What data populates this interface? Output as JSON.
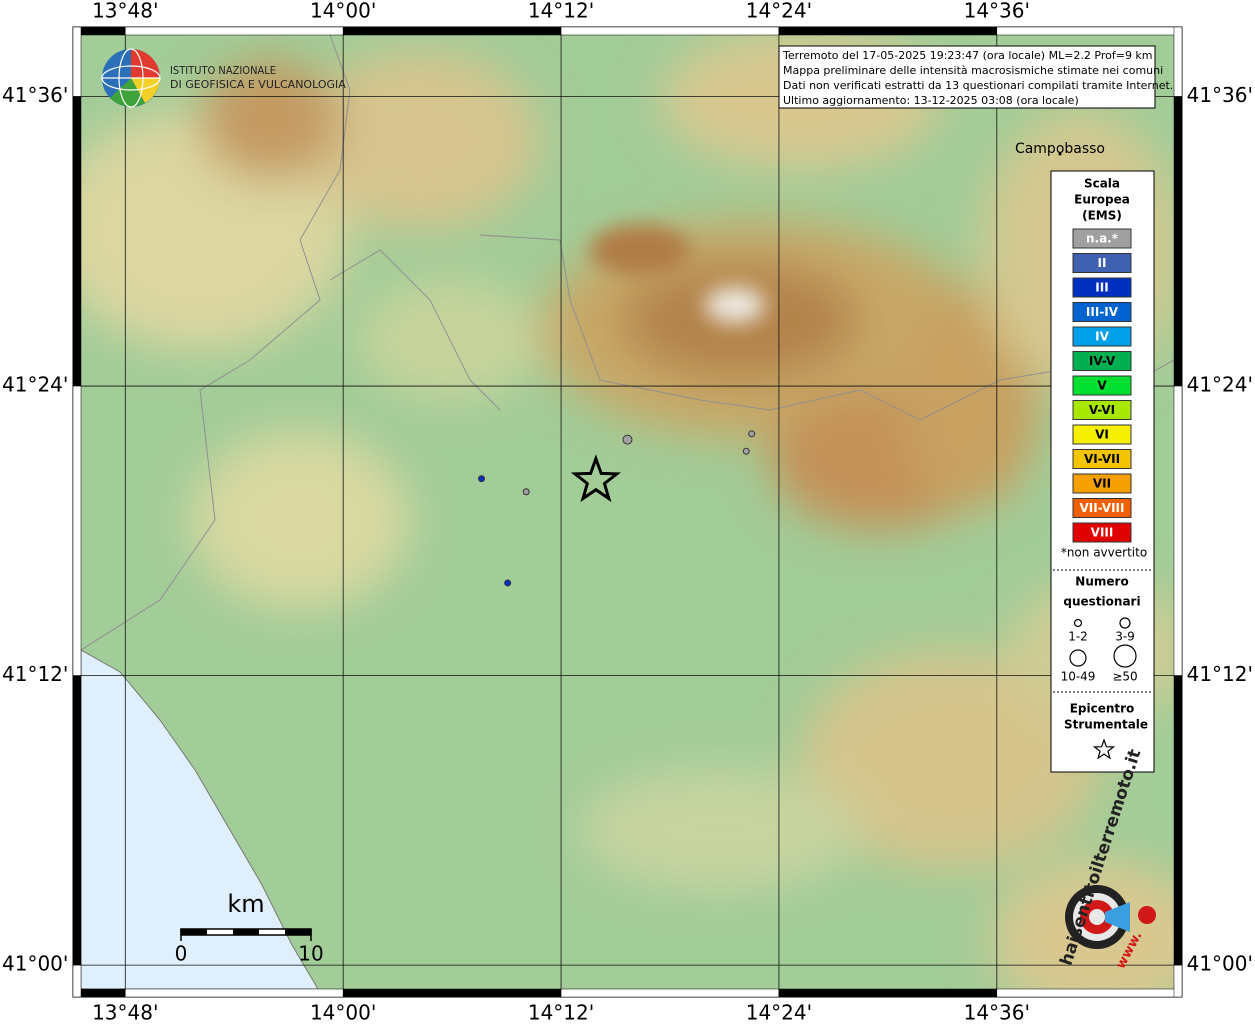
{
  "map": {
    "info": [
      "Terremoto del 17-05-2025 19:23:47 (ora locale) ML=2.2 Prof=9 km",
      "Mappa preliminare delle intensità macrosismiche stimate nei comuni",
      "Dati non verificati estratti da 13 questionari compilati tramite Internet.",
      "Ultimo aggiornamento: 13-12-2025 03:08 (ora locale)"
    ],
    "logo": [
      "ISTITUTO NAZIONALE",
      "DI GEOFISICA E VULCANOLOGIA"
    ],
    "lonlim": [
      13.752,
      14.77
    ],
    "latlim": [
      40.978,
      41.648
    ],
    "lonticks": [
      {
        "value": 13.8,
        "label": "13°48'"
      },
      {
        "value": 14.0,
        "label": "14°00'"
      },
      {
        "value": 14.2,
        "label": "14°12'"
      },
      {
        "value": 14.4,
        "label": "14°24'"
      },
      {
        "value": 14.6,
        "label": "14°36'"
      }
    ],
    "latticks": [
      {
        "value": 41.6,
        "label": "41°36'"
      },
      {
        "value": 41.4,
        "label": "41°24'"
      },
      {
        "value": 41.2,
        "label": "41°12'"
      },
      {
        "value": 41.0,
        "label": "41°00'"
      }
    ],
    "city": {
      "name": "Campobasso",
      "lon": 14.658,
      "lat": 41.563
    },
    "epicenter": {
      "lon": 14.232,
      "lat": 41.336
    },
    "points": [
      {
        "lon": 14.261,
        "lat": 41.363,
        "color": "#a0a0a0",
        "size": "3-9"
      },
      {
        "lon": 14.375,
        "lat": 41.367,
        "color": "#a0a0a0",
        "size": "1-2"
      },
      {
        "lon": 14.37,
        "lat": 41.355,
        "color": "#a0a0a0",
        "size": "1-2"
      },
      {
        "lon": 14.168,
        "lat": 41.327,
        "color": "#a0a0a0",
        "size": "1-2"
      },
      {
        "lon": 14.127,
        "lat": 41.336,
        "color": "#0030c0",
        "size": "1-2"
      },
      {
        "lon": 14.151,
        "lat": 41.264,
        "color": "#0030c0",
        "size": "1-2"
      }
    ],
    "legend": {
      "title": [
        "Scala",
        "Europea",
        "(EMS)"
      ],
      "classes": [
        {
          "label": "n.a.*",
          "color": "#a0a0a0",
          "text": "#ffffff"
        },
        {
          "label": "II",
          "color": "#4060b0",
          "text": "#ffffff"
        },
        {
          "label": "III",
          "color": "#0030c0",
          "text": "#ffffff"
        },
        {
          "label": "III-IV",
          "color": "#0064d0",
          "text": "#ffffff"
        },
        {
          "label": "IV",
          "color": "#00a0e8",
          "text": "#ffffff"
        },
        {
          "label": "IV-V",
          "color": "#00b050",
          "text": "#000000"
        },
        {
          "label": "V",
          "color": "#00e030",
          "text": "#000000"
        },
        {
          "label": "V-VI",
          "color": "#a8e800",
          "text": "#000000"
        },
        {
          "label": "VI",
          "color": "#f4f000",
          "text": "#000000"
        },
        {
          "label": "VI-VII",
          "color": "#f4c400",
          "text": "#000000"
        },
        {
          "label": "VII",
          "color": "#f4a000",
          "text": "#000000"
        },
        {
          "label": "VII-VIII",
          "color": "#f06000",
          "text": "#ffffff"
        },
        {
          "label": "VIII",
          "color": "#e00000",
          "text": "#ffffff"
        }
      ],
      "note": "*non avvertito",
      "count_title": [
        "Numero",
        "questionari"
      ],
      "sizes": [
        "1-2",
        "3-9",
        "10-49",
        "≥50"
      ],
      "epicenter_title": [
        "Epicentro",
        "Strumentale"
      ]
    },
    "scalebar": {
      "unit": "km",
      "labels": [
        "0",
        "10"
      ]
    },
    "badge": [
      "haisentitoilterremoto.it",
      "www."
    ]
  }
}
